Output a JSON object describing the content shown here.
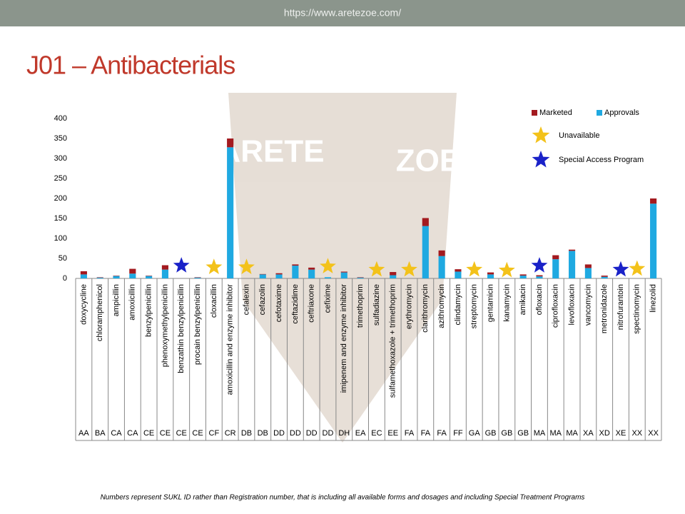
{
  "header": {
    "url": "https://www.aretezoe.com/"
  },
  "title": "J01 – Antibacterials",
  "watermark": [
    "ARETE",
    "ZOE"
  ],
  "footnote": "Numbers represent SUKL ID rather than Registration number, that is including all available forms and dosages and including Special Treatment Programs",
  "chart_data": {
    "type": "stacked-bar",
    "categories": [
      "doxycycline",
      "chloramphenicol",
      "ampicillin",
      "amoxicillin",
      "benzylpenicillin",
      "phenoxymethylpenicillin",
      "benzathin benzylpenicillin",
      "procain benzylpenicillin",
      "cloxacillin",
      "amoxicillin and enzyme inhibitor",
      "cefalexin",
      "cefazolin",
      "cefotaxime",
      "ceftazidime",
      "ceftriaxone",
      "cefixime",
      "imipenem and enzyme inhibitor",
      "trimethoprim",
      "sulfadiazine",
      "sulfamethoxazole + trimethoprim",
      "erythromycin",
      "clarithromycin",
      "azithromycin",
      "clindamycin",
      "streptomycin",
      "gentamicin",
      "kanamycin",
      "amikacin",
      "ofloxacin",
      "ciprofloxacin",
      "levofloxacin",
      "vancomycin",
      "metronidazole",
      "nitrofurantoin",
      "spectinomycin",
      "linezolid"
    ],
    "groups": [
      "AA",
      "BA",
      "CA",
      "CA",
      "CE",
      "CE",
      "CE",
      "CE",
      "CF",
      "CR",
      "DB",
      "DB",
      "DD",
      "DD",
      "DD",
      "DD",
      "DH",
      "EA",
      "EC",
      "EE",
      "FA",
      "FA",
      "FA",
      "FF",
      "GA",
      "GB",
      "GB",
      "GB",
      "MA",
      "MA",
      "MA",
      "XA",
      "XD",
      "XE",
      "XX",
      "XX"
    ],
    "series": [
      {
        "name": "Marketed",
        "color": "#a31a1f",
        "values": [
          8,
          1,
          1,
          12,
          1,
          11,
          0,
          1,
          0,
          22,
          0,
          1,
          3,
          3,
          5,
          0,
          2,
          1,
          0,
          8,
          0,
          20,
          14,
          6,
          0,
          5,
          0,
          3,
          3,
          10,
          3,
          9,
          3,
          0,
          0,
          13
        ]
      },
      {
        "name": "Approvals",
        "color": "#1fa9e1",
        "values": [
          10,
          2,
          6,
          12,
          6,
          22,
          0,
          2,
          0,
          328,
          0,
          10,
          10,
          32,
          22,
          3,
          15,
          2,
          0,
          8,
          0,
          131,
          56,
          17,
          0,
          10,
          0,
          7,
          5,
          48,
          69,
          26,
          4,
          0,
          0,
          187
        ]
      }
    ],
    "markers": [
      {
        "name": "Unavailable",
        "color": "#f3c21a",
        "values": [
          null,
          null,
          null,
          null,
          null,
          null,
          null,
          null,
          28,
          null,
          28,
          null,
          null,
          null,
          null,
          30,
          null,
          null,
          22,
          null,
          22,
          null,
          null,
          null,
          22,
          null,
          20,
          null,
          null,
          null,
          null,
          null,
          null,
          null,
          24,
          null
        ]
      },
      {
        "name": "Special Access Program",
        "color": "#1a22c8",
        "values": [
          null,
          null,
          null,
          null,
          null,
          null,
          32,
          null,
          null,
          null,
          null,
          null,
          null,
          null,
          null,
          null,
          null,
          null,
          null,
          null,
          null,
          null,
          null,
          null,
          null,
          null,
          null,
          null,
          32,
          null,
          null,
          null,
          null,
          22,
          null,
          null
        ]
      }
    ],
    "ylim": [
      0,
      400
    ],
    "yticks": [
      0,
      50,
      100,
      150,
      200,
      250,
      300,
      350,
      400
    ],
    "grid": false
  }
}
